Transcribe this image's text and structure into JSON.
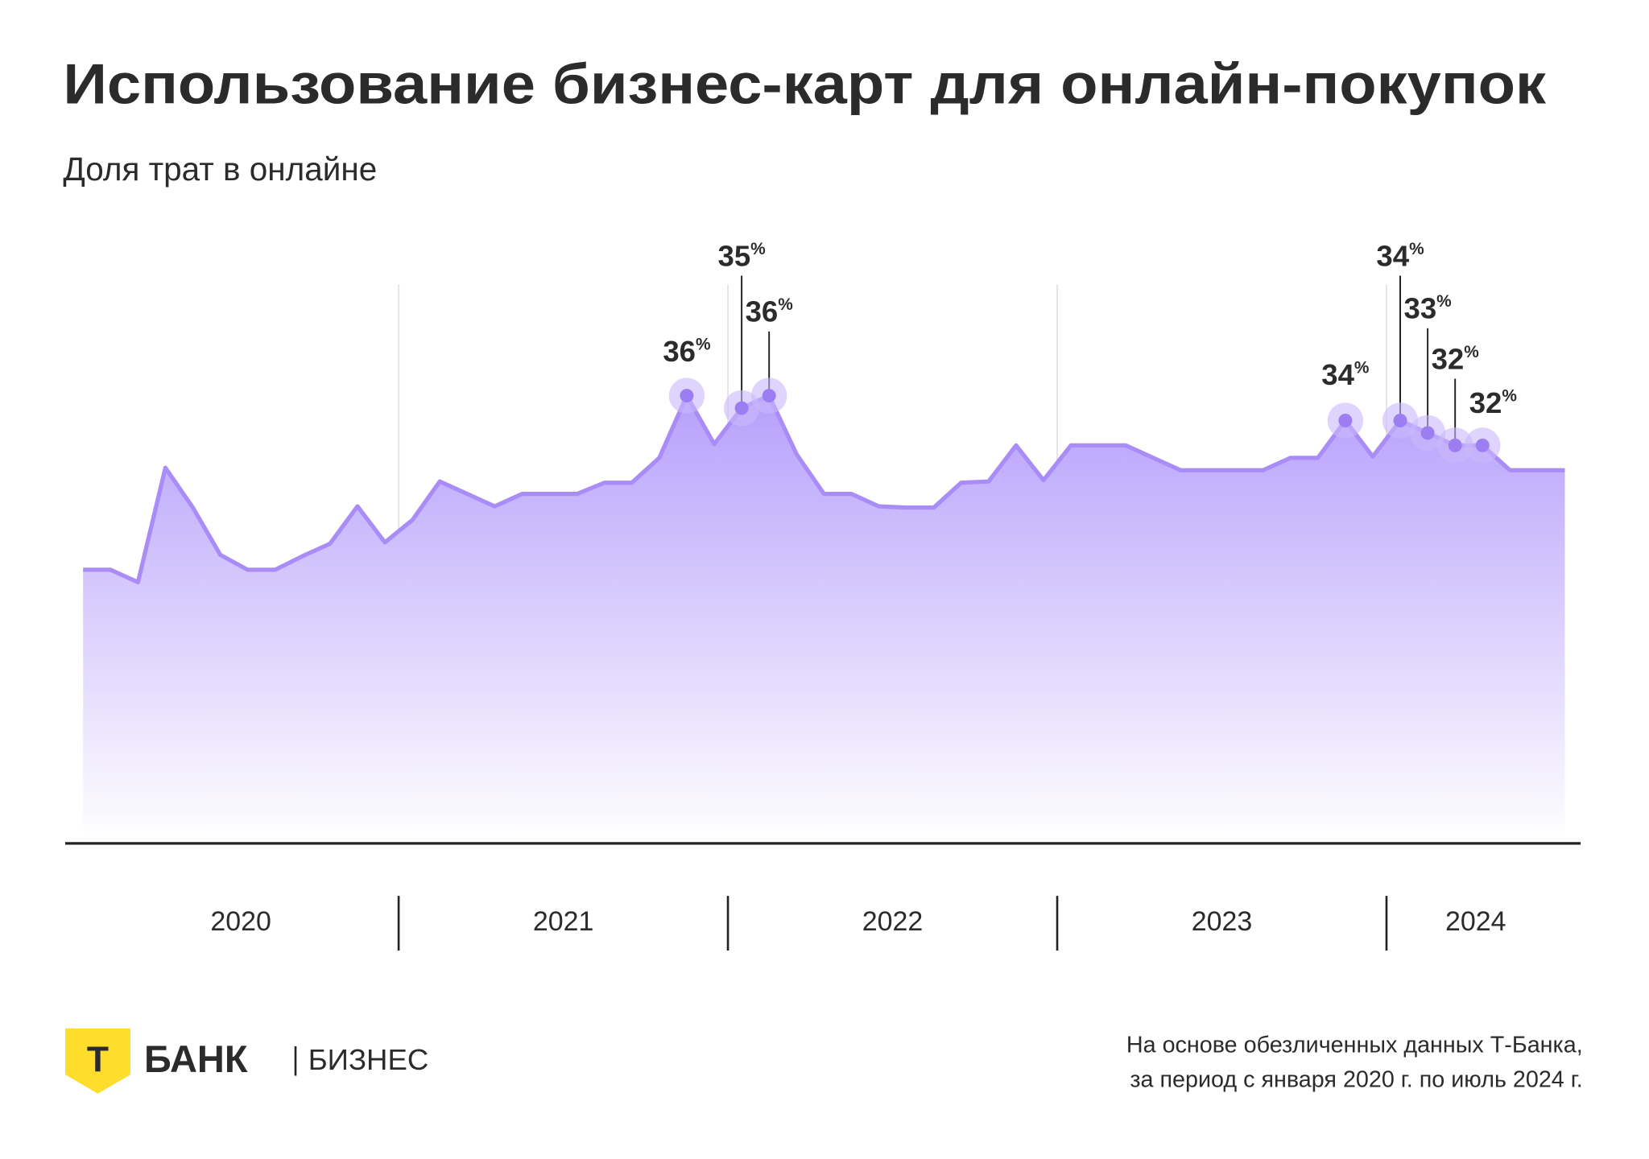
{
  "chart_data": {
    "type": "area",
    "title": "Использование бизнес-карт для онлайн-покупок",
    "subtitle": "Доля трат в онлайне",
    "categories": [
      null,
      null,
      null,
      null,
      null,
      null,
      null,
      null,
      null,
      null,
      null,
      null,
      null,
      null,
      null,
      null,
      null,
      null,
      null,
      null,
      null,
      null,
      null,
      null,
      null,
      null,
      null,
      null,
      null,
      null,
      null,
      null,
      null,
      null,
      null,
      null,
      null,
      null,
      null,
      null,
      null,
      null,
      null,
      null,
      null,
      null,
      null,
      null,
      null,
      null,
      null,
      null,
      null,
      null,
      null
    ],
    "groups": [
      "2020",
      "2021",
      "2022",
      "2023",
      "2024"
    ],
    "values": [
      22.0,
      22.0,
      21.0,
      30.2,
      27.0,
      23.2,
      22.0,
      22.0,
      23.1,
      24.1,
      27.1,
      24.2,
      26.0,
      29.1,
      28.1,
      27.1,
      28.1,
      28.1,
      28.1,
      29.0,
      29.0,
      31.0,
      36,
      32.1,
      35,
      36,
      31.3,
      28.1,
      28.1,
      27.1,
      27.0,
      27.0,
      29.0,
      29.1,
      32.0,
      29.2,
      32.0,
      32.0,
      32.0,
      31.0,
      30.0,
      30.0,
      30.0,
      30.0,
      31.0,
      31.0,
      34,
      31.1,
      34,
      33,
      32,
      32,
      30.0,
      30.0,
      30.0
    ],
    "value_labels": [
      null,
      null,
      null,
      null,
      null,
      null,
      null,
      null,
      null,
      null,
      null,
      null,
      null,
      null,
      null,
      null,
      null,
      null,
      null,
      null,
      null,
      null,
      "36%",
      null,
      "35%",
      "36%",
      null,
      null,
      null,
      null,
      null,
      null,
      null,
      null,
      null,
      null,
      null,
      null,
      null,
      null,
      null,
      null,
      null,
      null,
      null,
      null,
      "34%",
      null,
      "34%",
      "33%",
      "32%",
      "32%",
      null,
      null,
      null
    ],
    "color": "#a98cf7",
    "ylim": [
      0,
      50
    ],
    "footnote": [
      "На основе обезличенных данных Т-Банка,",
      "за период с января 2020 г. по июль 2024 г."
    ],
    "logo": {
      "letter": "Т",
      "name": "БАНК",
      "product": "БИЗНЕС"
    }
  }
}
